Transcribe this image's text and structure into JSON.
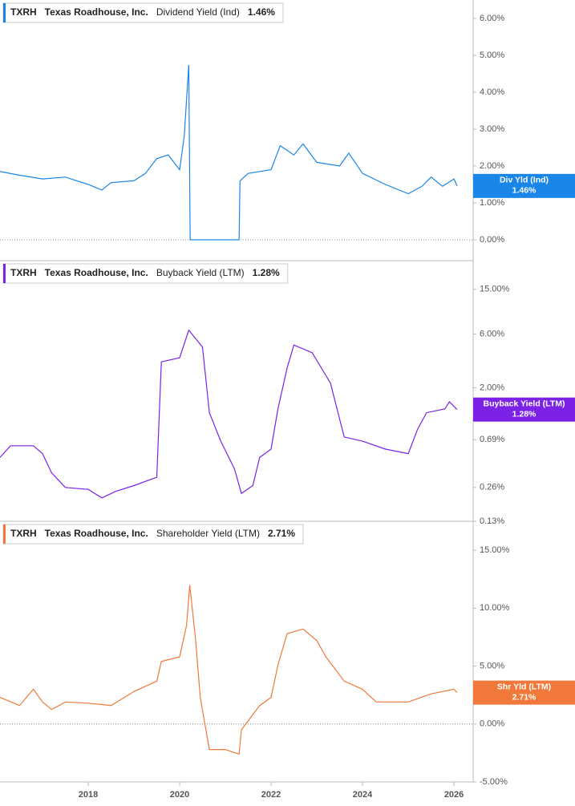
{
  "chart_data": [
    {
      "type": "line",
      "ticker": "TXRH",
      "company": "Texas Roadhouse, Inc.",
      "current_label": "1.46%",
      "tag_name": "Div Yld (Ind)",
      "tag_value": "1.46%",
      "zero_line": true,
      "log_scale": false,
      "xlim": [
        2016.07,
        2026.42
      ],
      "ylim": [
        -0.5,
        6.5
      ],
      "yticks": [
        {
          "value": 0,
          "label": "0.00%"
        },
        {
          "value": 1,
          "label": "1.00%"
        },
        {
          "value": 2,
          "label": "2.00%"
        },
        {
          "value": 3,
          "label": "3.00%"
        },
        {
          "value": 4,
          "label": "4.00%"
        },
        {
          "value": 5,
          "label": "5.00%"
        },
        {
          "value": 6,
          "label": "6.00%"
        }
      ],
      "x": [
        2016.07,
        2016.5,
        2017.0,
        2017.5,
        2018.0,
        2018.3,
        2018.5,
        2019.0,
        2019.25,
        2019.5,
        2019.75,
        2020.0,
        2020.1,
        2020.2,
        2020.23,
        2020.6,
        2021.0,
        2021.3,
        2021.32,
        2021.5,
        2022.0,
        2022.2,
        2022.5,
        2022.7,
        2023.0,
        2023.5,
        2023.7,
        2024.0,
        2024.5,
        2025.0,
        2025.3,
        2025.5,
        2025.75,
        2026.0,
        2026.07
      ],
      "series": [
        {
          "name": "Dividend Yield (Ind)",
          "color": "#1a86e8",
          "values": [
            1.85,
            1.75,
            1.65,
            1.7,
            1.5,
            1.35,
            1.55,
            1.6,
            1.8,
            2.2,
            2.3,
            1.9,
            2.8,
            4.74,
            0,
            0,
            0,
            0,
            1.6,
            1.8,
            1.9,
            2.55,
            2.3,
            2.6,
            2.1,
            2.0,
            2.35,
            1.8,
            1.5,
            1.25,
            1.45,
            1.7,
            1.45,
            1.65,
            1.46
          ]
        }
      ]
    },
    {
      "type": "line",
      "ticker": "TXRH",
      "company": "Texas Roadhouse, Inc.",
      "current_label": "1.28%",
      "tag_name": "Buyback Yield (LTM)",
      "tag_value": "1.28%",
      "zero_line": false,
      "log_scale": true,
      "xlim": [
        2016.07,
        2026.42
      ],
      "ylim": [
        0.13,
        27
      ],
      "yticks": [
        {
          "value": 0.13,
          "label": "0.13%"
        },
        {
          "value": 0.26,
          "label": "0.26%"
        },
        {
          "value": 0.69,
          "label": "0.69%"
        },
        {
          "value": 2,
          "label": "2.00%"
        },
        {
          "value": 6,
          "label": "6.00%"
        },
        {
          "value": 15,
          "label": "15.00%"
        }
      ],
      "x": [
        2016.07,
        2016.3,
        2016.8,
        2017.0,
        2017.2,
        2017.5,
        2018.0,
        2018.3,
        2018.6,
        2019.0,
        2019.5,
        2019.6,
        2020.0,
        2020.2,
        2020.5,
        2020.65,
        2020.9,
        2021.2,
        2021.35,
        2021.6,
        2021.75,
        2022.0,
        2022.15,
        2022.35,
        2022.5,
        2022.9,
        2023.3,
        2023.6,
        2024.0,
        2024.5,
        2025.0,
        2025.2,
        2025.4,
        2025.8,
        2025.9,
        2026.07
      ],
      "series": [
        {
          "name": "Buyback Yield (LTM)",
          "color": "#7b22e6",
          "values": [
            0.48,
            0.61,
            0.61,
            0.52,
            0.35,
            0.26,
            0.25,
            0.21,
            0.24,
            0.27,
            0.32,
            3.4,
            3.7,
            6.5,
            4.6,
            1.2,
            0.67,
            0.38,
            0.23,
            0.27,
            0.48,
            0.57,
            1.3,
            3.0,
            4.8,
            4.1,
            2.2,
            0.73,
            0.67,
            0.57,
            0.52,
            0.85,
            1.2,
            1.3,
            1.5,
            1.28
          ]
        }
      ]
    },
    {
      "type": "line",
      "ticker": "TXRH",
      "company": "Texas Roadhouse, Inc.",
      "current_label": "2.71%",
      "tag_name": "Shr Yld (LTM)",
      "tag_value": "2.71%",
      "zero_line": true,
      "log_scale": false,
      "xlim": [
        2016.07,
        2026.42
      ],
      "ylim": [
        -5,
        17.5
      ],
      "xticks": [
        2018,
        2020,
        2022,
        2024,
        2026
      ],
      "yticks": [
        {
          "value": -5,
          "label": "-5.00%"
        },
        {
          "value": 0,
          "label": "0.00%"
        },
        {
          "value": 5,
          "label": "5.00%"
        },
        {
          "value": 10,
          "label": "10.00%"
        },
        {
          "value": 15,
          "label": "15.00%"
        }
      ],
      "x": [
        2016.07,
        2016.5,
        2016.8,
        2017.0,
        2017.2,
        2017.5,
        2018.0,
        2018.5,
        2019.0,
        2019.5,
        2019.6,
        2020.0,
        2020.15,
        2020.22,
        2020.35,
        2020.45,
        2020.65,
        2021.0,
        2021.3,
        2021.35,
        2021.75,
        2022.0,
        2022.15,
        2022.35,
        2022.7,
        2023.0,
        2023.2,
        2023.6,
        2024.0,
        2024.3,
        2025.0,
        2025.5,
        2026.0,
        2026.07
      ],
      "series": [
        {
          "name": "Shareholder Yield (LTM)",
          "color": "#f0783a",
          "values": [
            2.3,
            1.6,
            3.0,
            1.9,
            1.25,
            1.9,
            1.8,
            1.6,
            2.8,
            3.7,
            5.4,
            5.8,
            8.5,
            12.0,
            7.2,
            2.3,
            -2.2,
            -2.2,
            -2.6,
            -0.5,
            1.6,
            2.3,
            5.1,
            7.8,
            8.2,
            7.2,
            5.8,
            3.7,
            3.0,
            1.9,
            1.9,
            2.6,
            3.0,
            2.71
          ]
        }
      ]
    }
  ]
}
